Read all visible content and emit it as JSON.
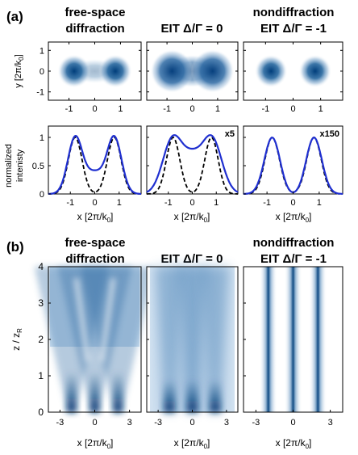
{
  "panel_a_label": "(a)",
  "panel_b_label": "(b)",
  "columns": [
    {
      "title_line1": "free-space",
      "title_line2": "diffraction"
    },
    {
      "title_line1": "",
      "title_line2": "EIT Δ/Γ = 0"
    },
    {
      "title_line1": "nondiffraction",
      "title_line2": "EIT Δ/Γ = -1"
    }
  ],
  "colors": {
    "beam": "#0b4f8c",
    "curve": "#1f2fd0",
    "dashed": "#000000",
    "axis": "#000000"
  },
  "chart_data": [
    {
      "type": "heatmap",
      "panel": "a-top",
      "ylabel": "y [2π/k",
      "ylabel_sub": "0",
      "ylabel_tail": "]",
      "xticks": [
        "-1",
        "0",
        "1"
      ],
      "yticks": [
        "-1",
        "0",
        "1"
      ],
      "xlim": [
        -1.8,
        1.8
      ],
      "ylim": [
        -1.4,
        1.4
      ],
      "beams": [
        {
          "centers": [
            -0.8,
            0.8
          ],
          "sigma": 0.25,
          "center_fill": 0.45
        },
        {
          "centers": [
            -0.8,
            0.8
          ],
          "sigma": 0.33,
          "center_fill": 0.85
        },
        {
          "centers": [
            -0.8,
            0.8
          ],
          "sigma": 0.23,
          "center_fill": 0.0
        }
      ]
    },
    {
      "type": "line",
      "panel": "a-middle",
      "ylabel_line1": "normalized",
      "ylabel_line2": "intenisty",
      "xlabel": "x [2π/k",
      "xlabel_sub": "0",
      "xlabel_tail": "]",
      "xticks": [
        "-1",
        "0",
        "1"
      ],
      "yticks": [
        "0",
        "0.5",
        "1"
      ],
      "xlim": [
        -1.9,
        1.9
      ],
      "ylim": [
        0,
        1.2
      ],
      "annotations": [
        "",
        "x5",
        "x150"
      ],
      "series": [
        {
          "kind": "dashed",
          "peaks": [
            -0.8,
            0.8
          ],
          "sigma": 0.28
        },
        {
          "kind": "solid",
          "panel": 0,
          "peaks": [
            -0.8,
            0.8
          ],
          "sigma": 0.3,
          "dip": 0.42
        },
        {
          "kind": "solid",
          "panel": 1,
          "peaks": [
            -0.8,
            0.8
          ],
          "sigma": 0.42,
          "dip": 0.8
        },
        {
          "kind": "solid",
          "panel": 2,
          "peaks": [
            -0.8,
            0.8
          ],
          "sigma": 0.3,
          "dip": 0.03
        }
      ]
    },
    {
      "type": "heatmap",
      "panel": "b",
      "ylabel": "z / z",
      "ylabel_sub": "R",
      "xlabel": "x [2π/k",
      "xlabel_sub": "0",
      "xlabel_tail": "]",
      "xticks": [
        "-3",
        "0",
        "3"
      ],
      "yticks": [
        "0",
        "1",
        "2",
        "3",
        "4"
      ],
      "xlim": [
        -4,
        4
      ],
      "ylim": [
        0,
        4
      ],
      "columns": [
        {
          "mode": "diffraction",
          "lines": [
            -2,
            0,
            2
          ],
          "spread": 0.42
        },
        {
          "mode": "eit",
          "lines": [
            -2,
            0,
            2
          ],
          "spread": 0.2
        },
        {
          "mode": "nondiffraction",
          "lines": [
            -2,
            0,
            2
          ],
          "spread": 0.0
        }
      ]
    }
  ]
}
